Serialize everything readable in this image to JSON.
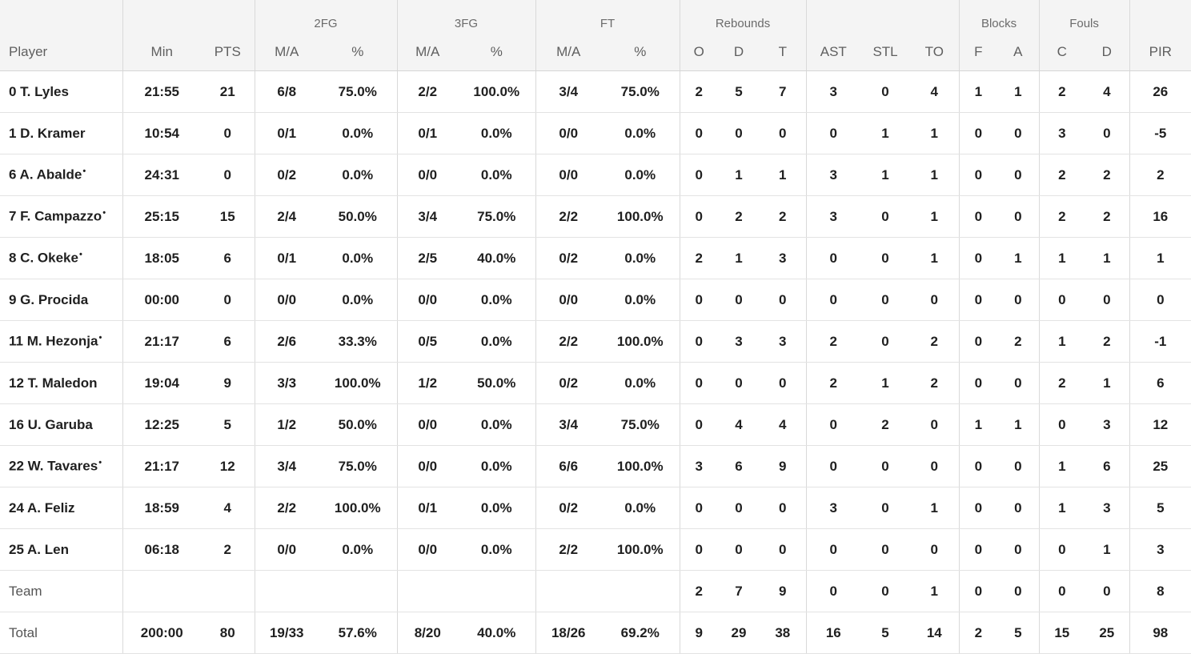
{
  "groups": [
    "2FG",
    "3FG",
    "FT",
    "Rebounds",
    "Blocks",
    "Fouls"
  ],
  "columns": [
    "Player",
    "Min",
    "PTS",
    "M/A",
    "%",
    "M/A",
    "%",
    "M/A",
    "%",
    "O",
    "D",
    "T",
    "AST",
    "STL",
    "TO",
    "F",
    "A",
    "C",
    "D",
    "PIR"
  ],
  "rows": [
    {
      "player": "0 T. Lyles",
      "star": "",
      "cells": [
        "21:55",
        "21",
        "6/8",
        "75.0%",
        "2/2",
        "100.0%",
        "3/4",
        "75.0%",
        "2",
        "5",
        "7",
        "3",
        "0",
        "4",
        "1",
        "1",
        "2",
        "4",
        "26"
      ]
    },
    {
      "player": "1 D. Kramer",
      "star": "",
      "cells": [
        "10:54",
        "0",
        "0/1",
        "0.0%",
        "0/1",
        "0.0%",
        "0/0",
        "0.0%",
        "0",
        "0",
        "0",
        "0",
        "1",
        "1",
        "0",
        "0",
        "3",
        "0",
        "-5"
      ]
    },
    {
      "player": "6 A. Abalde",
      "star": "•",
      "cells": [
        "24:31",
        "0",
        "0/2",
        "0.0%",
        "0/0",
        "0.0%",
        "0/0",
        "0.0%",
        "0",
        "1",
        "1",
        "3",
        "1",
        "1",
        "0",
        "0",
        "2",
        "2",
        "2"
      ]
    },
    {
      "player": "7 F. Campazzo",
      "star": "•",
      "cells": [
        "25:15",
        "15",
        "2/4",
        "50.0%",
        "3/4",
        "75.0%",
        "2/2",
        "100.0%",
        "0",
        "2",
        "2",
        "3",
        "0",
        "1",
        "0",
        "0",
        "2",
        "2",
        "16"
      ]
    },
    {
      "player": "8 C. Okeke",
      "star": "•",
      "cells": [
        "18:05",
        "6",
        "0/1",
        "0.0%",
        "2/5",
        "40.0%",
        "0/2",
        "0.0%",
        "2",
        "1",
        "3",
        "0",
        "0",
        "1",
        "0",
        "1",
        "1",
        "1",
        "1"
      ]
    },
    {
      "player": "9 G. Procida",
      "star": "",
      "cells": [
        "00:00",
        "0",
        "0/0",
        "0.0%",
        "0/0",
        "0.0%",
        "0/0",
        "0.0%",
        "0",
        "0",
        "0",
        "0",
        "0",
        "0",
        "0",
        "0",
        "0",
        "0",
        "0"
      ]
    },
    {
      "player": "11 M. Hezonja",
      "star": "•",
      "cells": [
        "21:17",
        "6",
        "2/6",
        "33.3%",
        "0/5",
        "0.0%",
        "2/2",
        "100.0%",
        "0",
        "3",
        "3",
        "2",
        "0",
        "2",
        "0",
        "2",
        "1",
        "2",
        "-1"
      ]
    },
    {
      "player": "12 T. Maledon",
      "star": "",
      "cells": [
        "19:04",
        "9",
        "3/3",
        "100.0%",
        "1/2",
        "50.0%",
        "0/2",
        "0.0%",
        "0",
        "0",
        "0",
        "2",
        "1",
        "2",
        "0",
        "0",
        "2",
        "1",
        "6"
      ]
    },
    {
      "player": "16 U. Garuba",
      "star": "",
      "cells": [
        "12:25",
        "5",
        "1/2",
        "50.0%",
        "0/0",
        "0.0%",
        "3/4",
        "75.0%",
        "0",
        "4",
        "4",
        "0",
        "2",
        "0",
        "1",
        "1",
        "0",
        "3",
        "12"
      ]
    },
    {
      "player": "22 W. Tavares",
      "star": "•",
      "cells": [
        "21:17",
        "12",
        "3/4",
        "75.0%",
        "0/0",
        "0.0%",
        "6/6",
        "100.0%",
        "3",
        "6",
        "9",
        "0",
        "0",
        "0",
        "0",
        "0",
        "1",
        "6",
        "25"
      ]
    },
    {
      "player": "24 A. Feliz",
      "star": "",
      "cells": [
        "18:59",
        "4",
        "2/2",
        "100.0%",
        "0/1",
        "0.0%",
        "0/2",
        "0.0%",
        "0",
        "0",
        "0",
        "3",
        "0",
        "1",
        "0",
        "0",
        "1",
        "3",
        "5"
      ]
    },
    {
      "player": "25 A. Len",
      "star": "",
      "cells": [
        "06:18",
        "2",
        "0/0",
        "0.0%",
        "0/0",
        "0.0%",
        "2/2",
        "100.0%",
        "0",
        "0",
        "0",
        "0",
        "0",
        "0",
        "0",
        "0",
        "0",
        "1",
        "3"
      ]
    },
    {
      "player": "Team",
      "star": "",
      "plain": true,
      "cells": [
        "",
        "",
        "",
        "",
        "",
        "",
        "",
        "",
        "2",
        "7",
        "9",
        "0",
        "0",
        "1",
        "0",
        "0",
        "0",
        "0",
        "8"
      ]
    },
    {
      "player": "Total",
      "star": "",
      "plain": true,
      "cells": [
        "200:00",
        "80",
        "19/33",
        "57.6%",
        "8/20",
        "40.0%",
        "18/26",
        "69.2%",
        "9",
        "29",
        "38",
        "16",
        "5",
        "14",
        "2",
        "5",
        "15",
        "25",
        "98"
      ]
    }
  ]
}
